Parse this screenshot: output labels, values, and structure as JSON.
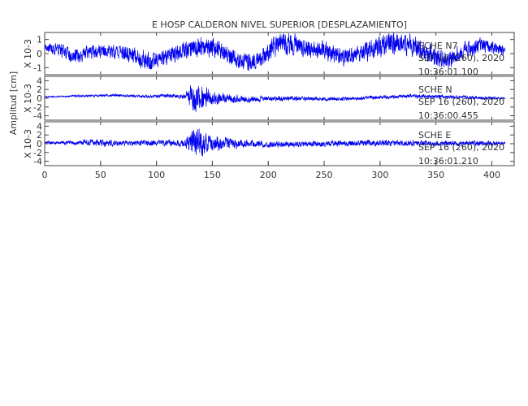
{
  "chart_data": {
    "type": "line",
    "title": "E HOSP CALDERON NIVEL SUPERIOR [DESPLAZAMIENTO]",
    "ylabel": "Amplitud [cm]",
    "xlim": [
      0,
      420
    ],
    "x_ticks": [
      0,
      50,
      100,
      150,
      200,
      250,
      300,
      350,
      400
    ],
    "line_color": "#0000ee",
    "panels": [
      {
        "scale_label": "X 10-3",
        "ylim": [
          -1.5,
          1.5
        ],
        "y_ticks": [
          -1,
          0,
          1
        ],
        "station": "SCHE N7",
        "date": "SEP 16 (260), 2020",
        "time": "10:36:01.100",
        "envelope": [
          [
            0,
            0.4
          ],
          [
            10,
            0.6
          ],
          [
            20,
            0.8
          ],
          [
            40,
            0.7
          ],
          [
            60,
            0.7
          ],
          [
            80,
            0.8
          ],
          [
            90,
            1.0
          ],
          [
            100,
            0.8
          ],
          [
            120,
            0.9
          ],
          [
            140,
            1.1
          ],
          [
            160,
            0.9
          ],
          [
            180,
            0.9
          ],
          [
            200,
            1.0
          ],
          [
            220,
            1.1
          ],
          [
            240,
            0.9
          ],
          [
            260,
            1.0
          ],
          [
            280,
            0.9
          ],
          [
            300,
            1.2
          ],
          [
            320,
            1.2
          ],
          [
            340,
            1.0
          ],
          [
            360,
            0.9
          ],
          [
            380,
            0.8
          ],
          [
            400,
            0.7
          ],
          [
            410,
            0.5
          ]
        ],
        "drift": [
          [
            0,
            0.4
          ],
          [
            15,
            0.3
          ],
          [
            25,
            -0.3
          ],
          [
            40,
            0.1
          ],
          [
            60,
            0.2
          ],
          [
            80,
            -0.1
          ],
          [
            95,
            -0.7
          ],
          [
            110,
            -0.2
          ],
          [
            125,
            0.3
          ],
          [
            140,
            0.5
          ],
          [
            155,
            0.4
          ],
          [
            170,
            -0.3
          ],
          [
            185,
            -0.6
          ],
          [
            195,
            -0.2
          ],
          [
            210,
            0.8
          ],
          [
            230,
            0.5
          ],
          [
            250,
            0.2
          ],
          [
            265,
            -0.3
          ],
          [
            280,
            -0.1
          ],
          [
            300,
            0.5
          ],
          [
            320,
            0.8
          ],
          [
            340,
            0.2
          ],
          [
            360,
            -0.5
          ],
          [
            375,
            0.2
          ],
          [
            390,
            0.6
          ],
          [
            400,
            0.4
          ],
          [
            410,
            0.2
          ]
        ]
      },
      {
        "scale_label": "X 10-3",
        "ylim": [
          -5,
          5
        ],
        "y_ticks": [
          -4,
          -2,
          0,
          2,
          4
        ],
        "station": "SCHE N",
        "date": "SEP 16 (260), 2020",
        "time": "10:36:00.455",
        "envelope": [
          [
            0,
            0.2
          ],
          [
            50,
            0.4
          ],
          [
            100,
            0.5
          ],
          [
            125,
            0.7
          ],
          [
            132,
            4.8
          ],
          [
            140,
            4.2
          ],
          [
            150,
            2.4
          ],
          [
            165,
            1.5
          ],
          [
            180,
            1.1
          ],
          [
            200,
            0.9
          ],
          [
            250,
            0.6
          ],
          [
            300,
            0.6
          ],
          [
            350,
            0.6
          ],
          [
            400,
            0.5
          ],
          [
            410,
            0.3
          ]
        ],
        "drift": [
          [
            0,
            0.3
          ],
          [
            30,
            0.5
          ],
          [
            60,
            0.7
          ],
          [
            90,
            0.4
          ],
          [
            110,
            0.6
          ],
          [
            128,
            0.2
          ],
          [
            150,
            -0.1
          ],
          [
            180,
            -0.3
          ],
          [
            220,
            0.0
          ],
          [
            260,
            -0.2
          ],
          [
            300,
            0.2
          ],
          [
            330,
            0.5
          ],
          [
            360,
            0.3
          ],
          [
            390,
            0.1
          ],
          [
            410,
            0.0
          ]
        ]
      },
      {
        "scale_label": "X 10-3",
        "ylim": [
          -5,
          5
        ],
        "y_ticks": [
          -4,
          -2,
          0,
          2,
          4
        ],
        "station": "SCHE E",
        "date": "SEP 16 (260), 2020",
        "time": "10:36:01.210",
        "envelope": [
          [
            0,
            0.5
          ],
          [
            30,
            0.7
          ],
          [
            55,
            1.4
          ],
          [
            65,
            0.8
          ],
          [
            100,
            0.9
          ],
          [
            125,
            1.1
          ],
          [
            132,
            4.5
          ],
          [
            140,
            4.0
          ],
          [
            150,
            2.6
          ],
          [
            165,
            1.6
          ],
          [
            180,
            1.3
          ],
          [
            200,
            1.0
          ],
          [
            250,
            0.9
          ],
          [
            300,
            1.0
          ],
          [
            350,
            0.9
          ],
          [
            400,
            0.8
          ],
          [
            410,
            0.5
          ]
        ],
        "drift": [
          [
            0,
            0.2
          ],
          [
            40,
            0.3
          ],
          [
            80,
            0.1
          ],
          [
            120,
            0.2
          ],
          [
            160,
            0.1
          ],
          [
            200,
            -0.2
          ],
          [
            250,
            0.0
          ],
          [
            300,
            0.2
          ],
          [
            350,
            0.0
          ],
          [
            410,
            0.1
          ]
        ]
      }
    ]
  }
}
